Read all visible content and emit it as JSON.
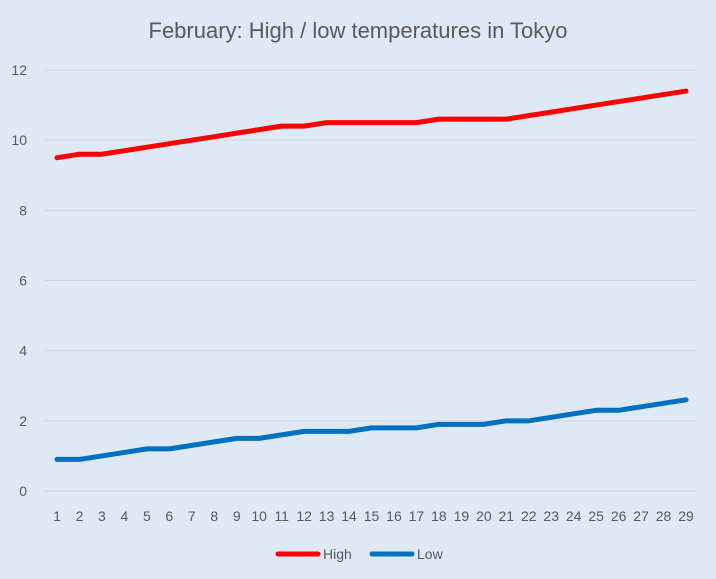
{
  "chart_data": {
    "type": "line",
    "title": "February: High / low temperatures in Tokyo",
    "xlabel": "",
    "ylabel": "",
    "x": [
      1,
      2,
      3,
      4,
      5,
      6,
      7,
      8,
      9,
      10,
      11,
      12,
      13,
      14,
      15,
      16,
      17,
      18,
      19,
      20,
      21,
      22,
      23,
      24,
      25,
      26,
      27,
      28,
      29
    ],
    "ylim": [
      0,
      12
    ],
    "yticks": [
      0,
      2,
      4,
      6,
      8,
      10,
      12
    ],
    "grid": true,
    "legend": "bottom",
    "series": [
      {
        "name": "High",
        "color": "#ff0000",
        "values": [
          9.5,
          9.6,
          9.6,
          9.7,
          9.8,
          9.9,
          10.0,
          10.1,
          10.2,
          10.3,
          10.4,
          10.4,
          10.5,
          10.5,
          10.5,
          10.5,
          10.5,
          10.6,
          10.6,
          10.6,
          10.6,
          10.7,
          10.8,
          10.9,
          11.0,
          11.1,
          11.2,
          11.3,
          11.4
        ]
      },
      {
        "name": "Low",
        "color": "#0070c0",
        "values": [
          0.9,
          0.9,
          1.0,
          1.1,
          1.2,
          1.2,
          1.3,
          1.4,
          1.5,
          1.5,
          1.6,
          1.7,
          1.7,
          1.7,
          1.8,
          1.8,
          1.8,
          1.9,
          1.9,
          1.9,
          2.0,
          2.0,
          2.1,
          2.2,
          2.3,
          2.3,
          2.4,
          2.5,
          2.6
        ]
      }
    ]
  }
}
